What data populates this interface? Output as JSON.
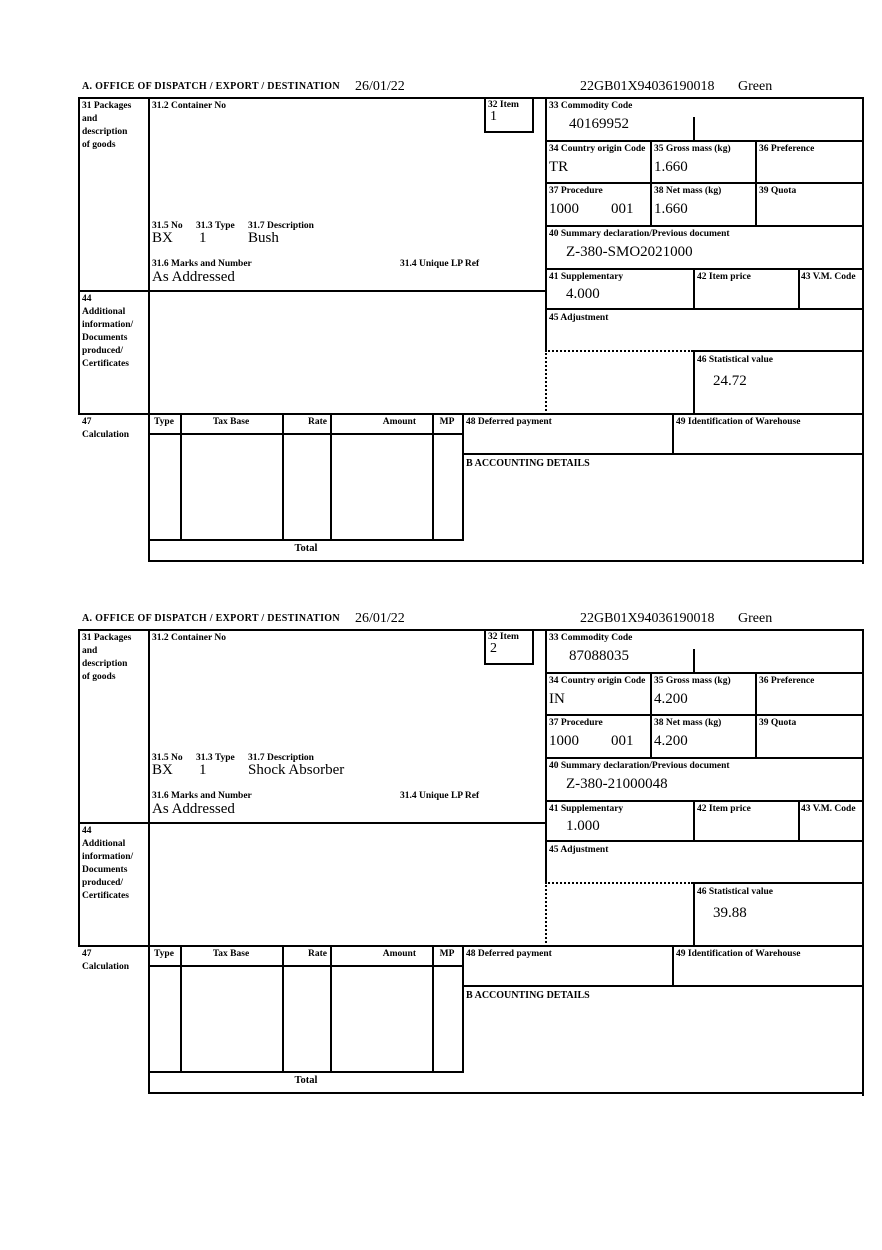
{
  "form": {
    "header": {
      "section_label": "A. OFFICE OF DISPATCH / EXPORT / DESTINATION",
      "date": "26/01/22",
      "mrn": "22GB01X94036190018",
      "routing": "Green"
    },
    "labels": {
      "box31_lines": [
        "31 Packages",
        "and",
        "description",
        "of goods"
      ],
      "container_no": "31.2 Container No",
      "item": "32 Item",
      "commodity_code": "33 Commodity Code",
      "country_origin": "34 Country origin Code",
      "gross_mass": "35 Gross mass (kg)",
      "preference": "36 Preference",
      "procedure": "37 Procedure",
      "net_mass": "38 Net mass (kg)",
      "quota": "39 Quota",
      "previous_document": "40 Summary declaration/Previous document",
      "supplementary": "41 Supplementary",
      "item_price": "42 Item price",
      "vm_code": "43 V.M. Code",
      "adjustment": "45 Adjustment",
      "statistical_value": "46 Statistical value",
      "no_315": "31.5 No",
      "type_313": "31.3 Type",
      "description_317": "31.7 Description",
      "marks_316": "31.6 Marks and Number",
      "lp_ref_314": "31.4 Unique LP Ref",
      "box44_lines": [
        "44",
        "Additional",
        "information/",
        "Documents",
        "produced/",
        "Certificates"
      ],
      "box47_lines": [
        "47",
        "Calculation"
      ],
      "calc_headers": [
        "Type",
        "Tax Base",
        "Rate",
        "Amount",
        "MP"
      ],
      "deferred_payment": "48 Deferred payment",
      "warehouse": "49 Identification of Warehouse",
      "accounting": "B ACCOUNTING DETAILS",
      "total": "Total"
    },
    "items": [
      {
        "item_no": "1",
        "commodity_code": "40169952",
        "country_origin": "TR",
        "gross_mass": "1.660",
        "procedure": "1000",
        "procedure_ext": "001",
        "net_mass": "1.660",
        "previous_document": "Z-380-SMO2021000",
        "supplementary": "4.000",
        "statistical_value": "24.72",
        "package_no": "BX",
        "package_type": "1",
        "goods_description": "Bush",
        "marks": "As Addressed"
      },
      {
        "item_no": "2",
        "commodity_code": "87088035",
        "country_origin": "IN",
        "gross_mass": "4.200",
        "procedure": "1000",
        "procedure_ext": "001",
        "net_mass": "4.200",
        "previous_document": "Z-380-21000048",
        "supplementary": "1.000",
        "statistical_value": "39.88",
        "package_no": "BX",
        "package_type": "1",
        "goods_description": "Shock Absorber",
        "marks": "As Addressed"
      }
    ]
  }
}
